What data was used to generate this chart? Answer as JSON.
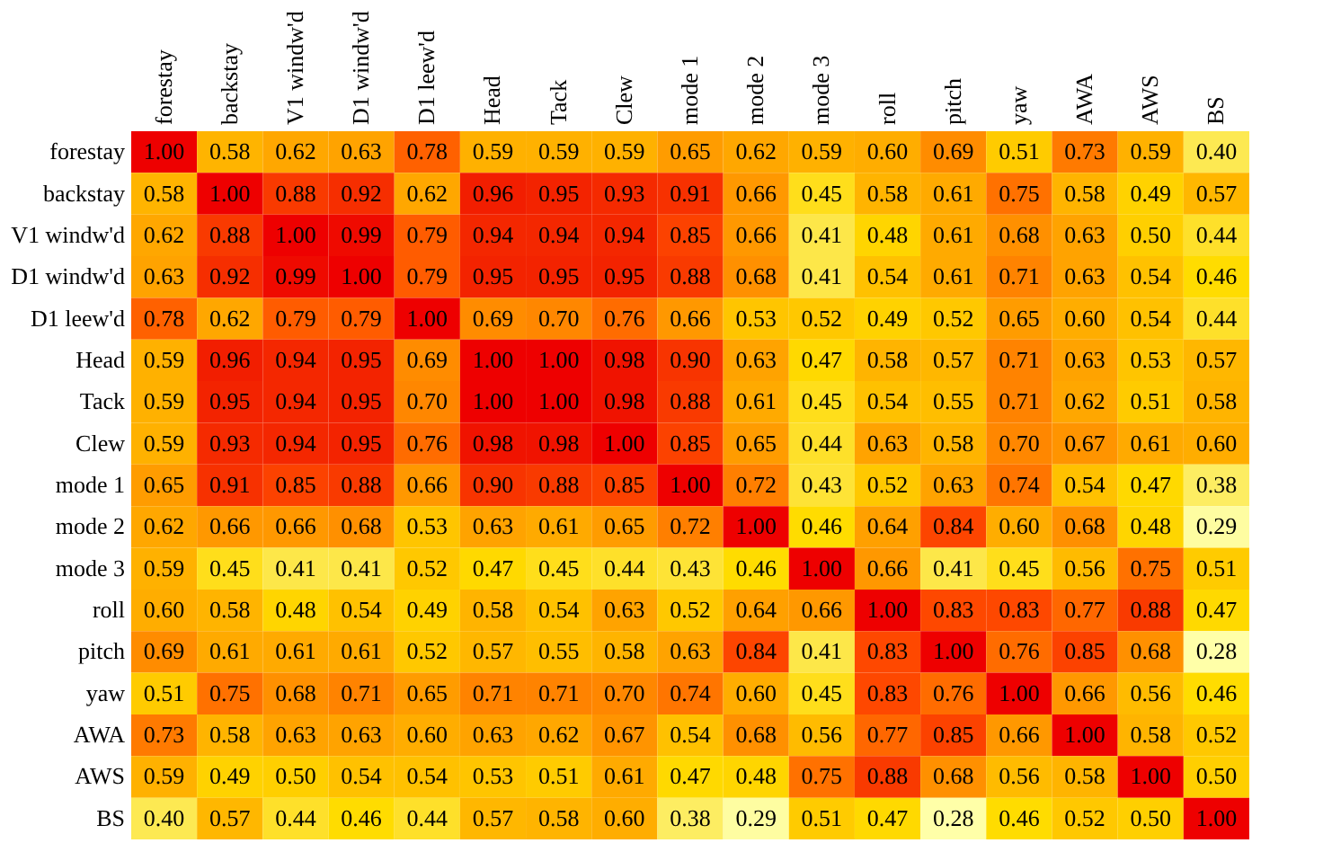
{
  "chart_data": {
    "type": "heatmap",
    "categories": [
      "forestay",
      "backstay",
      "V1 windw'd",
      "D1 windw'd",
      "D1 leew'd",
      "Head",
      "Tack",
      "Clew",
      "mode 1",
      "mode 2",
      "mode 3",
      "roll",
      "pitch",
      "yaw",
      "AWA",
      "AWS",
      "BS"
    ],
    "y_categories": [
      "forestay",
      "backstay",
      "V1 windw'd",
      "D1 windw'd",
      "D1 leew'd",
      "Head",
      "Tack",
      "Clew",
      "mode 1",
      "mode 2",
      "mode 3",
      "roll",
      "pitch",
      "yaw",
      "AWA",
      "AWS",
      "BS"
    ],
    "cells": [
      [
        1.0,
        0.58,
        0.62,
        0.63,
        0.78,
        0.59,
        0.59,
        0.59,
        0.65,
        0.62,
        0.59,
        0.6,
        0.69,
        0.51,
        0.73,
        0.59,
        0.4
      ],
      [
        0.58,
        1.0,
        0.88,
        0.92,
        0.62,
        0.96,
        0.95,
        0.93,
        0.91,
        0.66,
        0.45,
        0.58,
        0.61,
        0.75,
        0.58,
        0.49,
        0.57
      ],
      [
        0.62,
        0.88,
        1.0,
        0.99,
        0.79,
        0.94,
        0.94,
        0.94,
        0.85,
        0.66,
        0.41,
        0.48,
        0.61,
        0.68,
        0.63,
        0.5,
        0.44
      ],
      [
        0.63,
        0.92,
        0.99,
        1.0,
        0.79,
        0.95,
        0.95,
        0.95,
        0.88,
        0.68,
        0.41,
        0.54,
        0.61,
        0.71,
        0.63,
        0.54,
        0.46
      ],
      [
        0.78,
        0.62,
        0.79,
        0.79,
        1.0,
        0.69,
        0.7,
        0.76,
        0.66,
        0.53,
        0.52,
        0.49,
        0.52,
        0.65,
        0.6,
        0.54,
        0.44
      ],
      [
        0.59,
        0.96,
        0.94,
        0.95,
        0.69,
        1.0,
        1.0,
        0.98,
        0.9,
        0.63,
        0.47,
        0.58,
        0.57,
        0.71,
        0.63,
        0.53,
        0.57
      ],
      [
        0.59,
        0.95,
        0.94,
        0.95,
        0.7,
        1.0,
        1.0,
        0.98,
        0.88,
        0.61,
        0.45,
        0.54,
        0.55,
        0.71,
        0.62,
        0.51,
        0.58
      ],
      [
        0.59,
        0.93,
        0.94,
        0.95,
        0.76,
        0.98,
        0.98,
        1.0,
        0.85,
        0.65,
        0.44,
        0.63,
        0.58,
        0.7,
        0.67,
        0.61,
        0.6
      ],
      [
        0.65,
        0.91,
        0.85,
        0.88,
        0.66,
        0.9,
        0.88,
        0.85,
        1.0,
        0.72,
        0.43,
        0.52,
        0.63,
        0.74,
        0.54,
        0.47,
        0.38
      ],
      [
        0.62,
        0.66,
        0.66,
        0.68,
        0.53,
        0.63,
        0.61,
        0.65,
        0.72,
        1.0,
        0.46,
        0.64,
        0.84,
        0.6,
        0.68,
        0.48,
        0.29
      ],
      [
        0.59,
        0.45,
        0.41,
        0.41,
        0.52,
        0.47,
        0.45,
        0.44,
        0.43,
        0.46,
        1.0,
        0.66,
        0.41,
        0.45,
        0.56,
        0.75,
        0.51
      ],
      [
        0.6,
        0.58,
        0.48,
        0.54,
        0.49,
        0.58,
        0.54,
        0.63,
        0.52,
        0.64,
        0.66,
        1.0,
        0.83,
        0.83,
        0.77,
        0.88,
        0.47
      ],
      [
        0.69,
        0.61,
        0.61,
        0.61,
        0.52,
        0.57,
        0.55,
        0.58,
        0.63,
        0.84,
        0.41,
        0.83,
        1.0,
        0.76,
        0.85,
        0.68,
        0.28
      ],
      [
        0.51,
        0.75,
        0.68,
        0.71,
        0.65,
        0.71,
        0.71,
        0.7,
        0.74,
        0.6,
        0.45,
        0.83,
        0.76,
        1.0,
        0.66,
        0.56,
        0.46
      ],
      [
        0.73,
        0.58,
        0.63,
        0.63,
        0.6,
        0.63,
        0.62,
        0.67,
        0.54,
        0.68,
        0.56,
        0.77,
        0.85,
        0.66,
        1.0,
        0.58,
        0.52
      ],
      [
        0.59,
        0.49,
        0.5,
        0.54,
        0.54,
        0.53,
        0.51,
        0.61,
        0.47,
        0.48,
        0.75,
        0.88,
        0.68,
        0.56,
        0.58,
        1.0,
        0.5
      ],
      [
        0.4,
        0.57,
        0.44,
        0.46,
        0.44,
        0.57,
        0.58,
        0.6,
        0.38,
        0.29,
        0.51,
        0.47,
        0.28,
        0.46,
        0.52,
        0.5,
        1.0
      ]
    ],
    "cell_labels": [
      [
        "1.00",
        "0.58",
        "0.62",
        "0.63",
        "0.78",
        "0.59",
        "0.59",
        "0.59",
        "0.65",
        "0.62",
        "0.59",
        "0.60",
        "0.69",
        "0.51",
        "0.73",
        "0.59",
        "0.40"
      ],
      [
        "0.58",
        "1.00",
        "0.88",
        "0.92",
        "0.62",
        "0.96",
        "0.95",
        "0.93",
        "0.91",
        "0.66",
        "0.45",
        "0.58",
        "0.61",
        "0.75",
        "0.58",
        "0.49",
        "0.57"
      ],
      [
        "0.62",
        "0.88",
        "1.00",
        "0.99",
        "0.79",
        "0.94",
        "0.94",
        "0.94",
        "0.85",
        "0.66",
        "0.41",
        "0.48",
        "0.61",
        "0.68",
        "0.63",
        "0.50",
        "0.44"
      ],
      [
        "0.63",
        "0.92",
        "0.99",
        "1.00",
        "0.79",
        "0.95",
        "0.95",
        "0.95",
        "0.88",
        "0.68",
        "0.41",
        "0.54",
        "0.61",
        "0.71",
        "0.63",
        "0.54",
        "0.46"
      ],
      [
        "0.78",
        "0.62",
        "0.79",
        "0.79",
        "1.00",
        "0.69",
        "0.70",
        "0.76",
        "0.66",
        "0.53",
        "0.52",
        "0.49",
        "0.52",
        "0.65",
        "0.60",
        "0.54",
        "0.44"
      ],
      [
        "0.59",
        "0.96",
        "0.94",
        "0.95",
        "0.69",
        "1.00",
        "1.00",
        "0.98",
        "0.90",
        "0.63",
        "0.47",
        "0.58",
        "0.57",
        "0.71",
        "0.63",
        "0.53",
        "0.57"
      ],
      [
        "0.59",
        "0.95",
        "0.94",
        "0.95",
        "0.70",
        "1.00",
        "1.00",
        "0.98",
        "0.88",
        "0.61",
        "0.45",
        "0.54",
        "0.55",
        "0.71",
        "0.62",
        "0.51",
        "0.58"
      ],
      [
        "0.59",
        "0.93",
        "0.94",
        "0.95",
        "0.76",
        "0.98",
        "0.98",
        "1.00",
        "0.85",
        "0.65",
        "0.44",
        "0.63",
        "0.58",
        "0.70",
        "0.67",
        "0.61",
        "0.60"
      ],
      [
        "0.65",
        "0.91",
        "0.85",
        "0.88",
        "0.66",
        "0.90",
        "0.88",
        "0.85",
        "1.00",
        "0.72",
        "0.43",
        "0.52",
        "0.63",
        "0.74",
        "0.54",
        "0.47",
        "0.38"
      ],
      [
        "0.62",
        "0.66",
        "0.66",
        "0.68",
        "0.53",
        "0.63",
        "0.61",
        "0.65",
        "0.72",
        "1.00",
        "0.46",
        "0.64",
        "0.84",
        "0.60",
        "0.68",
        "0.48",
        "0.29"
      ],
      [
        "0.59",
        "0.45",
        "0.41",
        "0.41",
        "0.52",
        "0.47",
        "0.45",
        "0.44",
        "0.43",
        "0.46",
        "1.00",
        "0.66",
        "0.41",
        "0.45",
        "0.56",
        "0.75",
        "0.51"
      ],
      [
        "0.60",
        "0.58",
        "0.48",
        "0.54",
        "0.49",
        "0.58",
        "0.54",
        "0.63",
        "0.52",
        "0.64",
        "0.66",
        "1.00",
        "0.83",
        "0.83",
        "0.77",
        "0.88",
        "0.47"
      ],
      [
        "0.69",
        "0.61",
        "0.61",
        "0.61",
        "0.52",
        "0.57",
        "0.55",
        "0.58",
        "0.63",
        "0.84",
        "0.41",
        "0.83",
        "1.00",
        "0.76",
        "0.85",
        "0.68",
        "0.28"
      ],
      [
        "0.51",
        "0.75",
        "0.68",
        "0.71",
        "0.65",
        "0.71",
        "0.71",
        "0.70",
        "0.74",
        "0.60",
        "0.45",
        "0.83",
        "0.76",
        "1.00",
        "0.66",
        "0.56",
        "0.46"
      ],
      [
        "0.73",
        "0.58",
        "0.63",
        "0.63",
        "0.60",
        "0.63",
        "0.62",
        "0.67",
        "0.54",
        "0.68",
        "0.56",
        "0.77",
        "0.85",
        "0.66",
        "1.00",
        "0.58",
        "0.52"
      ],
      [
        "0.59",
        "0.49",
        "0.50",
        "0.54",
        "0.54",
        "0.53",
        "0.51",
        "0.61",
        "0.47",
        "0.48",
        "0.75",
        "0.88",
        "0.68",
        "0.56",
        "0.58",
        "1.00",
        "0.50"
      ],
      [
        "0.40",
        "0.57",
        "0.44",
        "0.46",
        "0.44",
        "0.57",
        "0.58",
        "0.60",
        "0.38",
        "0.29",
        "0.51",
        "0.47",
        "0.28",
        "0.46",
        "0.52",
        "0.50",
        "1.00"
      ]
    ]
  }
}
